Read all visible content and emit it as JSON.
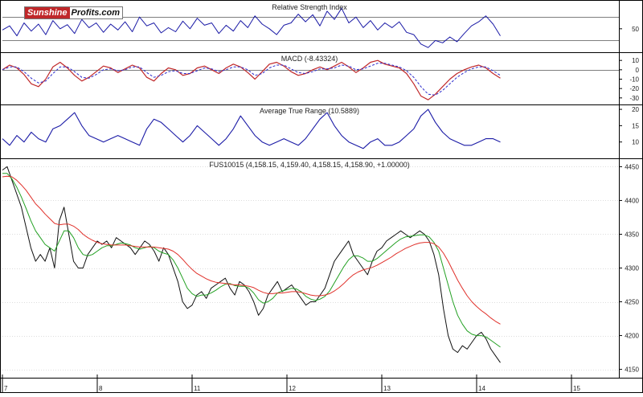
{
  "logo": {
    "part1": "Sunshine",
    "part2": "Profits.com"
  },
  "colors": {
    "price": "#111111",
    "rsi": "#1a1aa6",
    "macd": "#c0282a",
    "signal": "#2a2acc",
    "atr": "#1a1aa6",
    "sma_fast": "#22a022",
    "sma_slow": "#e0302a",
    "grid": "#9a9a9a"
  },
  "chart_data": [
    {
      "type": "line",
      "title": "Relative Strength Index",
      "ylim": [
        10,
        95
      ],
      "yticks": [
        {
          "v": 50,
          "label": "50"
        }
      ],
      "hlines": [
        70,
        30
      ],
      "series": [
        {
          "values": [
            48,
            55,
            38,
            60,
            46,
            58,
            40,
            64,
            50,
            57,
            42,
            66,
            52,
            60,
            44,
            58,
            48,
            62,
            45,
            70,
            55,
            60,
            43,
            52,
            45,
            63,
            50,
            68,
            56,
            60,
            42,
            56,
            46,
            64,
            52,
            72,
            58,
            50,
            40,
            56,
            60,
            75,
            62,
            74,
            55,
            80,
            66,
            85,
            60,
            70,
            52,
            64,
            48,
            60,
            52,
            62,
            44,
            40,
            24,
            18,
            30,
            26,
            36,
            28,
            42,
            55,
            62,
            72,
            58,
            38
          ]
        }
      ]
    },
    {
      "type": "line",
      "title": "MACD (-8.43324)",
      "ylim": [
        -37,
        17
      ],
      "yticks": [
        {
          "v": 10,
          "label": "10"
        },
        {
          "v": 0,
          "label": "0"
        },
        {
          "v": -10,
          "label": "-10"
        },
        {
          "v": -20,
          "label": "-20"
        },
        {
          "v": -30,
          "label": "-30"
        }
      ],
      "hlines": [
        0
      ],
      "series": [
        {
          "values": [
            0,
            5,
            2,
            -5,
            -15,
            -18,
            -10,
            3,
            8,
            2,
            -6,
            -12,
            -8,
            -2,
            4,
            2,
            -3,
            1,
            5,
            2,
            -8,
            -12,
            -4,
            2,
            0,
            -6,
            -4,
            2,
            4,
            0,
            -4,
            2,
            6,
            3,
            -3,
            -10,
            -2,
            6,
            8,
            4,
            -2,
            -6,
            -4,
            0,
            3,
            0,
            4,
            8,
            3,
            -3,
            2,
            8,
            10,
            6,
            4,
            2,
            -4,
            -15,
            -28,
            -32,
            -26,
            -18,
            -10,
            -4,
            0,
            3,
            5,
            2,
            -4,
            -9
          ]
        },
        {
          "values": [
            0,
            3,
            3,
            -2,
            -9,
            -14,
            -12,
            -4,
            3,
            3,
            -2,
            -8,
            -9,
            -5,
            0,
            1,
            -1,
            0,
            3,
            3,
            -3,
            -8,
            -6,
            -2,
            -1,
            -4,
            -4,
            -1,
            2,
            1,
            -2,
            0,
            3,
            3,
            0,
            -6,
            -4,
            2,
            5,
            5,
            1,
            -3,
            -4,
            -2,
            1,
            1,
            2,
            5,
            4,
            0,
            1,
            4,
            7,
            7,
            5,
            3,
            -1,
            -8,
            -18,
            -26,
            -27,
            -22,
            -15,
            -8,
            -3,
            1,
            3,
            3,
            -1,
            -6
          ]
        }
      ]
    },
    {
      "type": "line",
      "title": "Average True Range (10.5889)",
      "ylim": [
        5,
        21
      ],
      "yticks": [
        {
          "v": 20,
          "label": "20"
        },
        {
          "v": 15,
          "label": "15"
        },
        {
          "v": 10,
          "label": "10"
        }
      ],
      "hlines": [],
      "series": [
        {
          "values": [
            11,
            9,
            12,
            10,
            13,
            11,
            10,
            14,
            15,
            17,
            19,
            15,
            12,
            11,
            10,
            11,
            12,
            11,
            10,
            9,
            14,
            17,
            16,
            14,
            12,
            10,
            12,
            15,
            13,
            11,
            9,
            11,
            14,
            18,
            15,
            12,
            10,
            9,
            10,
            11,
            10,
            9,
            11,
            14,
            17,
            19,
            15,
            12,
            10,
            9,
            8,
            10,
            11,
            9,
            9,
            10,
            12,
            14,
            18,
            20,
            16,
            13,
            11,
            10,
            9,
            9,
            10,
            11,
            11,
            10
          ]
        }
      ]
    },
    {
      "type": "line",
      "title": "FUS10015 (4,158.15, 4,159.40, 4,158.15, 4,158.90, +1.00000)",
      "ylim": [
        4140,
        4460
      ],
      "yticks": [
        {
          "v": 4450,
          "label": "4450"
        },
        {
          "v": 4400,
          "label": "4400"
        },
        {
          "v": 4350,
          "label": "4350"
        },
        {
          "v": 4300,
          "label": "4300"
        },
        {
          "v": 4250,
          "label": "4250"
        },
        {
          "v": 4200,
          "label": "4200"
        },
        {
          "v": 4150,
          "label": "4150"
        }
      ],
      "xticks": [
        {
          "i": 0,
          "label": "7"
        },
        {
          "i": 20,
          "label": "8"
        },
        {
          "i": 40,
          "label": "11"
        },
        {
          "i": 60,
          "label": "12"
        },
        {
          "i": 80,
          "label": "13"
        },
        {
          "i": 100,
          "label": "14"
        },
        {
          "i": 120,
          "label": "15"
        }
      ],
      "xlim": [
        0,
        130
      ],
      "series": [
        {
          "values": [
            4445,
            4450,
            4430,
            4410,
            4390,
            4360,
            4330,
            4310,
            4320,
            4310,
            4330,
            4300,
            4370,
            4390,
            4350,
            4310,
            4300,
            4300,
            4320,
            4330,
            4340,
            4335,
            4340,
            4330,
            4345,
            4340,
            4335,
            4330,
            4320,
            4330,
            4340,
            4335,
            4325,
            4310,
            4330,
            4320,
            4300,
            4280,
            4250,
            4240,
            4245,
            4260,
            4265,
            4255,
            4270,
            4275,
            4280,
            4285,
            4270,
            4260,
            4280,
            4275,
            4265,
            4250,
            4230,
            4240,
            4260,
            4270,
            4280,
            4265,
            4270,
            4275,
            4265,
            4255,
            4245,
            4250,
            4250,
            4260,
            4270,
            4290,
            4310,
            4320,
            4330,
            4340,
            4320,
            4310,
            4300,
            4290,
            4310,
            4325,
            4330,
            4340,
            4345,
            4350,
            4355,
            4350,
            4345,
            4350,
            4355,
            4350,
            4340,
            4320,
            4290,
            4240,
            4200,
            4180,
            4175,
            4185,
            4180,
            4190,
            4200,
            4205,
            4195,
            4180,
            4170,
            4160
          ]
        },
        {
          "values": [
            4440,
            4440,
            4432,
            4420,
            4405,
            4388,
            4370,
            4355,
            4345,
            4335,
            4330,
            4325,
            4340,
            4355,
            4355,
            4345,
            4330,
            4320,
            4318,
            4320,
            4325,
            4330,
            4333,
            4333,
            4335,
            4337,
            4336,
            4334,
            4330,
            4328,
            4330,
            4332,
            4330,
            4325,
            4322,
            4320,
            4312,
            4300,
            4285,
            4270,
            4262,
            4258,
            4260,
            4260,
            4263,
            4267,
            4272,
            4276,
            4277,
            4274,
            4273,
            4273,
            4270,
            4263,
            4253,
            4248,
            4250,
            4255,
            4263,
            4266,
            4268,
            4270,
            4269,
            4265,
            4258,
            4254,
            4252,
            4254,
            4258,
            4266,
            4278,
            4290,
            4302,
            4312,
            4318,
            4318,
            4315,
            4310,
            4310,
            4314,
            4320,
            4326,
            4332,
            4338,
            4343,
            4346,
            4347,
            4348,
            4349,
            4349,
            4346,
            4338,
            4325,
            4300,
            4275,
            4250,
            4230,
            4217,
            4207,
            4202,
            4200,
            4200,
            4198,
            4193,
            4188,
            4183
          ]
        },
        {
          "values": [
            4435,
            4436,
            4435,
            4430,
            4423,
            4415,
            4405,
            4395,
            4388,
            4380,
            4373,
            4366,
            4364,
            4365,
            4365,
            4362,
            4357,
            4350,
            4345,
            4341,
            4338,
            4336,
            4335,
            4334,
            4334,
            4334,
            4334,
            4333,
            4332,
            4331,
            4331,
            4331,
            4331,
            4330,
            4329,
            4328,
            4325,
            4320,
            4313,
            4305,
            4298,
            4292,
            4288,
            4284,
            4281,
            4279,
            4278,
            4277,
            4276,
            4275,
            4275,
            4274,
            4273,
            4271,
            4267,
            4264,
            4262,
            4262,
            4263,
            4263,
            4264,
            4265,
            4265,
            4264,
            4262,
            4260,
            4259,
            4259,
            4260,
            4262,
            4266,
            4271,
            4277,
            4284,
            4290,
            4294,
            4297,
            4299,
            4301,
            4304,
            4308,
            4312,
            4316,
            4321,
            4325,
            4329,
            4332,
            4335,
            4337,
            4338,
            4338,
            4336,
            4331,
            4322,
            4310,
            4296,
            4282,
            4270,
            4259,
            4250,
            4243,
            4237,
            4232,
            4226,
            4221,
            4217
          ]
        }
      ]
    }
  ]
}
